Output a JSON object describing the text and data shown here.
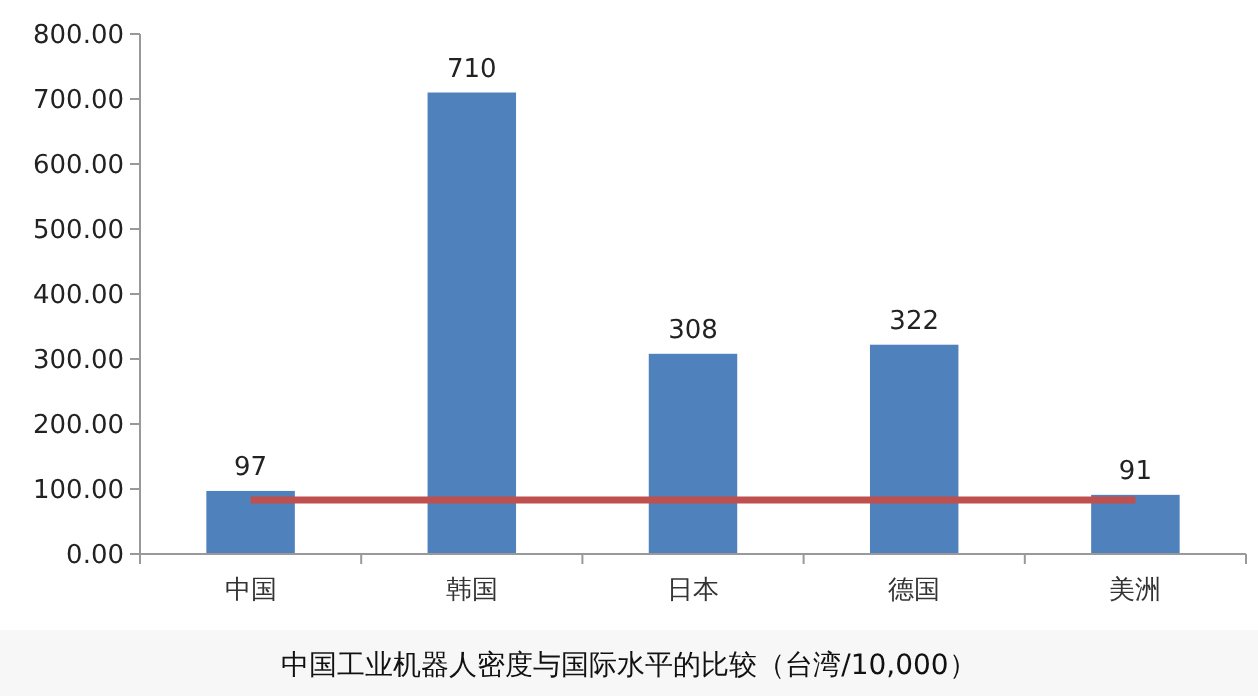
{
  "chart_data": {
    "type": "bar",
    "title": "中国工业机器人密度与国际水平的比较（台湾/10,000）",
    "categories": [
      "中国",
      "韩国",
      "日本",
      "德国",
      "美洲"
    ],
    "series": [
      {
        "color": "#4f81bd",
        "values": [
          97,
          710,
          308,
          322,
          91
        ],
        "value_labels": [
          "97",
          "710",
          "308",
          "322",
          "91"
        ]
      },
      {
        "type": "line",
        "color": "#c0504d",
        "values": [
          83,
          83,
          83,
          83,
          83
        ]
      }
    ],
    "ylim": [
      0,
      800
    ],
    "yticks": [
      {
        "value": 0,
        "label": "0.00"
      },
      {
        "value": 100,
        "label": "100.00"
      },
      {
        "value": 200,
        "label": "200.00"
      },
      {
        "value": 300,
        "label": "300.00"
      },
      {
        "value": 400,
        "label": "400.00"
      },
      {
        "value": 500,
        "label": "500.00"
      },
      {
        "value": 600,
        "label": "600.00"
      },
      {
        "value": 700,
        "label": "700.00"
      },
      {
        "value": 800,
        "label": "800.00"
      }
    ],
    "grid": false,
    "marker": "none",
    "line_style": "solid"
  }
}
